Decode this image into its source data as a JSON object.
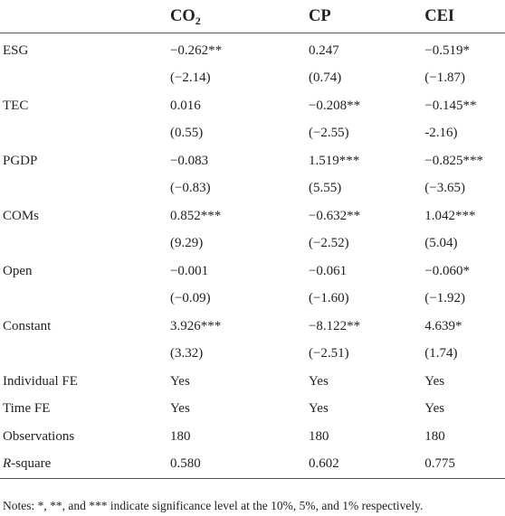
{
  "header": {
    "blank": "",
    "col1_main": "CO",
    "col1_sub": "2",
    "col2": "CP",
    "col3": "CEI"
  },
  "rows": [
    {
      "label": "ESG",
      "c1": "−0.262**",
      "c2": "0.247",
      "c3": "−0.519*"
    },
    {
      "label": "",
      "c1": "(−2.14)",
      "c2": "(0.74)",
      "c3": "(−1.87)"
    },
    {
      "label": "TEC",
      "c1": "0.016",
      "c2": "−0.208**",
      "c3": "−0.145**"
    },
    {
      "label": "",
      "c1": "(0.55)",
      "c2": "(−2.55)",
      "c3": "-2.16)"
    },
    {
      "label": "PGDP",
      "c1": "−0.083",
      "c2": "1.519***",
      "c3": "−0.825***"
    },
    {
      "label": "",
      "c1": "(−0.83)",
      "c2": "(5.55)",
      "c3": "(−3.65)"
    },
    {
      "label": "COMs",
      "c1": "0.852***",
      "c2": "−0.632**",
      "c3": "1.042***"
    },
    {
      "label": "",
      "c1": "(9.29)",
      "c2": "(−2.52)",
      "c3": "(5.04)"
    },
    {
      "label": "Open",
      "c1": "−0.001",
      "c2": "−0.061",
      "c3": "−0.060*"
    },
    {
      "label": "",
      "c1": "(−0.09)",
      "c2": "(−1.60)",
      "c3": "(−1.92)"
    },
    {
      "label": "Constant",
      "c1": "3.926***",
      "c2": "−8.122**",
      "c3": "4.639*"
    },
    {
      "label": "",
      "c1": "(3.32)",
      "c2": "(−2.51)",
      "c3": "(1.74)"
    },
    {
      "label": "Individual FE",
      "c1": "Yes",
      "c2": "Yes",
      "c3": "Yes"
    },
    {
      "label": "Time FE",
      "c1": "Yes",
      "c2": "Yes",
      "c3": "Yes"
    },
    {
      "label": "Observations",
      "c1": "180",
      "c2": "180",
      "c3": "180"
    }
  ],
  "rsquare": {
    "label_italic": "R",
    "label_rest": "-square",
    "c1": "0.580",
    "c2": "0.602",
    "c3": "0.775"
  },
  "notes": "Notes: *, **, and *** indicate significance level at the 10%, 5%, and 1% respectively."
}
